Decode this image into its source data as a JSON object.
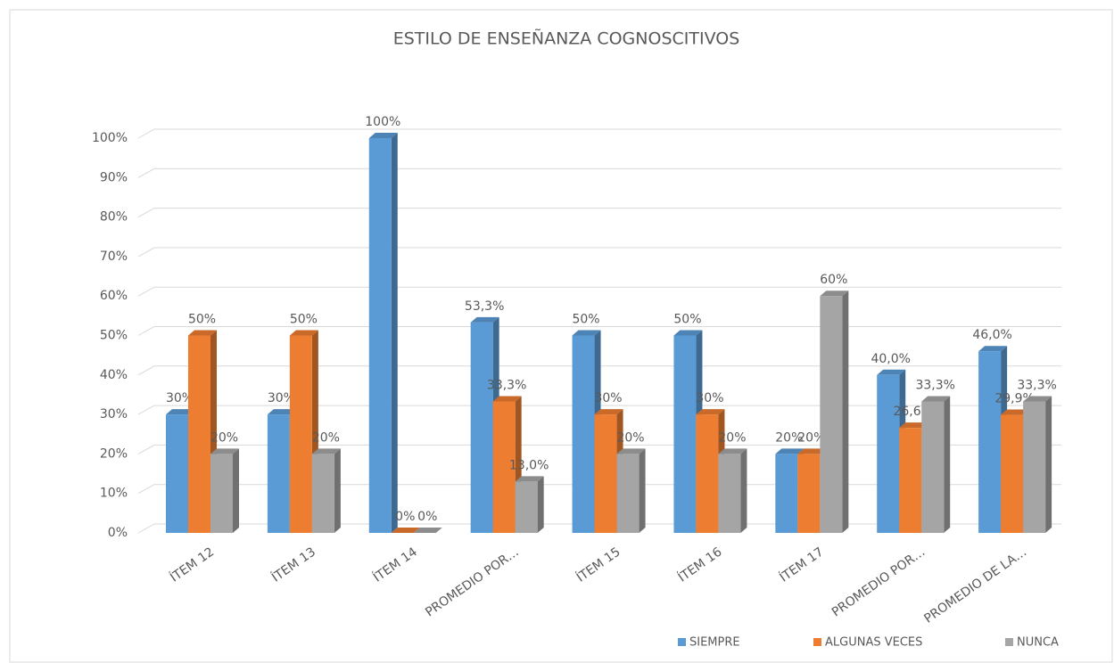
{
  "chart_data": {
    "type": "bar3d",
    "title": "ESTILO DE ENSEÑANZA COGNOSCITIVOS",
    "categories": [
      "ÍTEM 12",
      "ÍTEM 13",
      "ÍTEM 14",
      "PROMEDIO POR…",
      "ÍTEM 15",
      "ÍTEM 16",
      "ÍTEM 17",
      "PROMEDIO POR…",
      "PROMEDIO DE LA…"
    ],
    "series": [
      {
        "name": "SIEMPRE",
        "color": "#5b9bd5",
        "values": [
          30,
          30,
          100,
          53.3,
          50,
          50,
          20,
          40.0,
          46.0
        ],
        "value_labels": [
          "30%",
          "30%",
          "100%",
          "53,3%",
          "50%",
          "50%",
          "20%",
          "40,0%",
          "46,0%"
        ]
      },
      {
        "name": "ALGUNAS VECES",
        "color": "#ed7d31",
        "values": [
          50,
          50,
          0,
          33.3,
          30,
          30,
          20,
          26.6,
          29.9
        ],
        "value_labels": [
          "50%",
          "50%",
          "0%",
          "33,3%",
          "30%",
          "30%",
          "20%",
          "26,6%",
          "29,9%"
        ]
      },
      {
        "name": "NUNCA",
        "color": "#a5a5a5",
        "values": [
          20,
          20,
          0,
          13.0,
          20,
          20,
          60,
          33.3,
          33.3
        ],
        "value_labels": [
          "20%",
          "20%",
          "0%",
          "13,0%",
          "20%",
          "20%",
          "60%",
          "33,3%",
          "33,3%"
        ]
      }
    ],
    "ylim": [
      0,
      100
    ],
    "yticks": [
      {
        "value": 0,
        "label": "0%"
      },
      {
        "value": 10,
        "label": "10%"
      },
      {
        "value": 20,
        "label": "20%"
      },
      {
        "value": 30,
        "label": "30%"
      },
      {
        "value": 40,
        "label": "40%"
      },
      {
        "value": 50,
        "label": "50%"
      },
      {
        "value": 60,
        "label": "60%"
      },
      {
        "value": 70,
        "label": "70%"
      },
      {
        "value": 80,
        "label": "80%"
      },
      {
        "value": 90,
        "label": "90%"
      },
      {
        "value": 100,
        "label": "100%"
      }
    ],
    "grid": true,
    "legend": "bottom-right"
  }
}
